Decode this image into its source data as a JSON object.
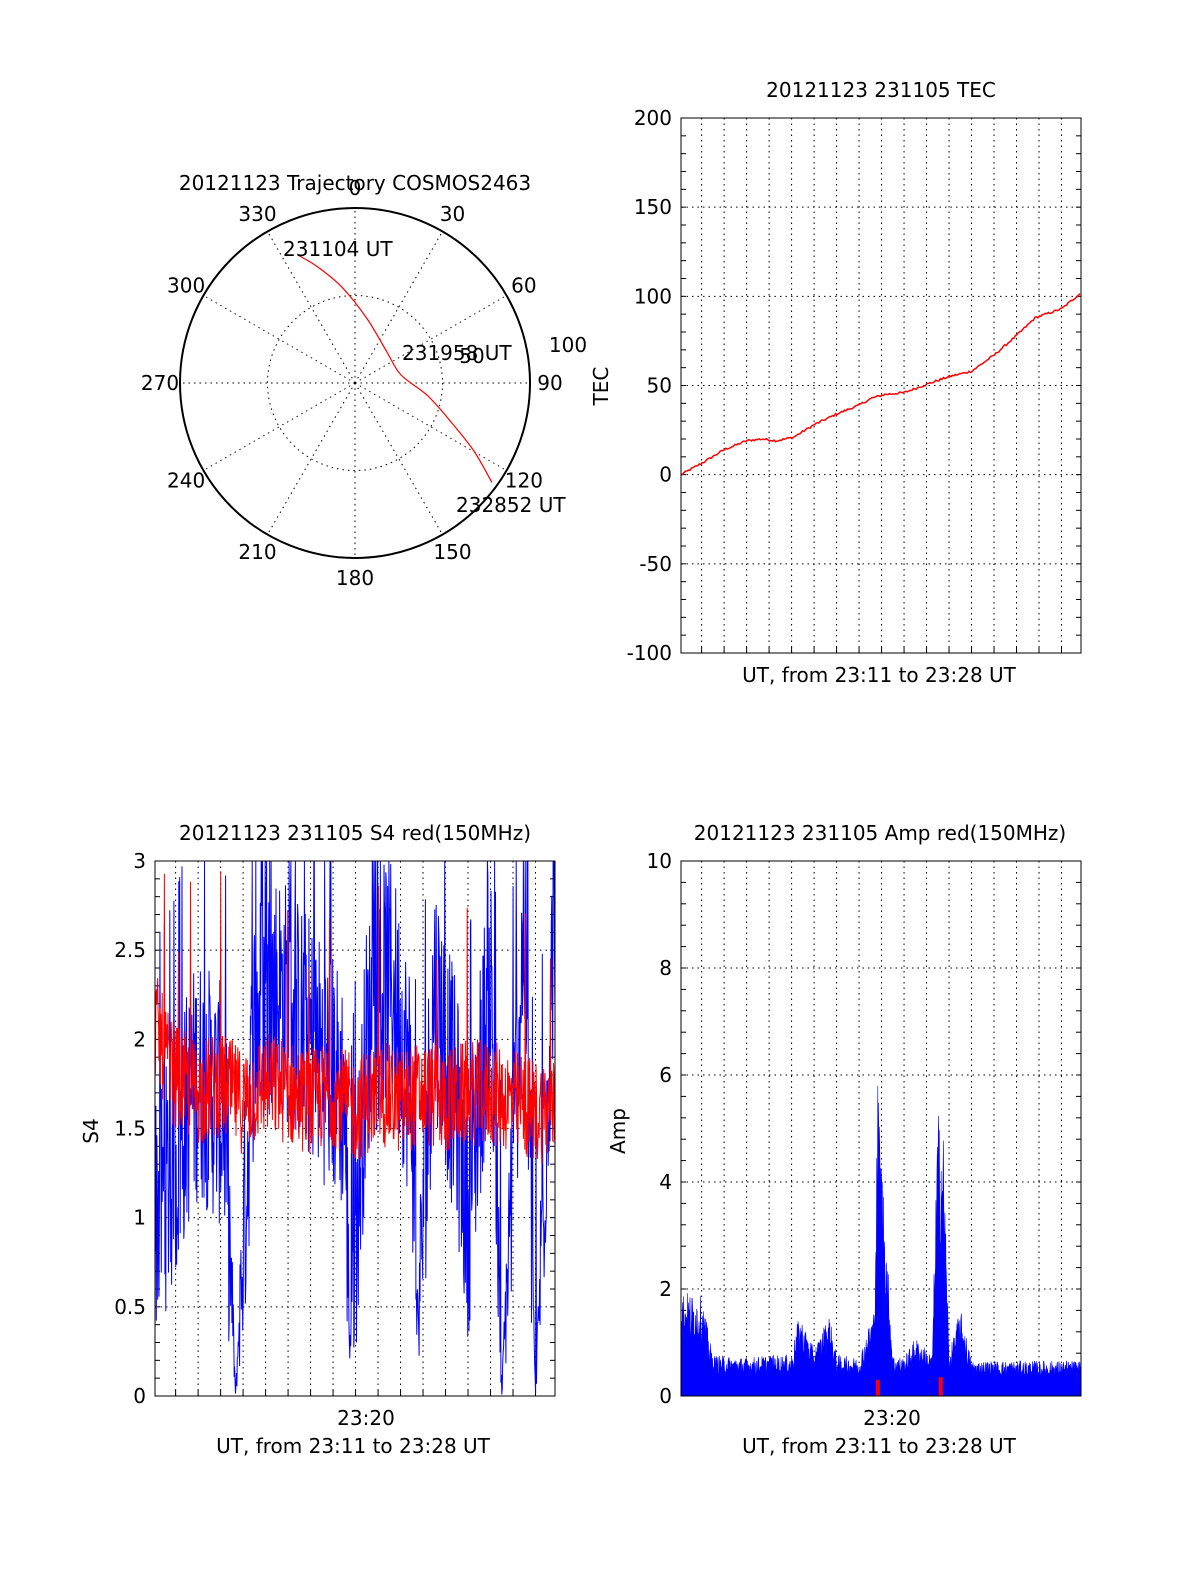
{
  "chart_data": [
    {
      "type": "polar",
      "title": "20121123 Trajectory COSMOS2463",
      "angle_labels": [
        "0",
        "30",
        "60",
        "90",
        "120",
        "150",
        "180",
        "210",
        "240",
        "270",
        "300",
        "330"
      ],
      "radial_labels": [
        "50",
        "100"
      ],
      "rlim": [
        0,
        100
      ],
      "grid": true,
      "series": [
        {
          "color": "#ff0000",
          "points": [
            {
              "az": 336,
              "el": 18
            },
            {
              "az": 342,
              "el": 27
            },
            {
              "az": 352,
              "el": 40
            },
            {
              "az": 10,
              "el": 56
            },
            {
              "az": 45,
              "el": 67
            },
            {
              "az": 80,
              "el": 66
            },
            {
              "az": 100,
              "el": 52
            },
            {
              "az": 113,
              "el": 35
            },
            {
              "az": 120,
              "el": 19
            },
            {
              "az": 126,
              "el": 3
            }
          ]
        }
      ],
      "annotations": [
        "231104 UT",
        "231958 UT",
        "232852 UT"
      ]
    },
    {
      "type": "line",
      "title": "20121123 231105 TEC",
      "xlabel": "UT, from 23:11 to 23:28 UT",
      "ylabel": "TEC",
      "xlim": [
        "23:11:05",
        "23:28:52"
      ],
      "ylim": [
        -100,
        200
      ],
      "yticks": [
        "-100",
        "-50",
        "0",
        "50",
        "100",
        "150",
        "200"
      ],
      "grid": true,
      "series": [
        {
          "color": "#ff0000",
          "x": [
            "23:11:05",
            "23:12:05",
            "23:13:00",
            "23:14:00",
            "23:14:40",
            "23:15:20",
            "23:16:05",
            "23:17:00",
            "23:18:00",
            "23:19:00",
            "23:19:35",
            "23:20:10",
            "23:21:00",
            "23:22:05",
            "23:23:00",
            "23:24:00",
            "23:25:00",
            "23:26:00",
            "23:26:50",
            "23:28:00",
            "23:28:52"
          ],
          "values": [
            0,
            7,
            14,
            19,
            20,
            19,
            21,
            28,
            34,
            39,
            43,
            45,
            46,
            51,
            55,
            58,
            67,
            78,
            88,
            93,
            102
          ]
        }
      ]
    },
    {
      "type": "line",
      "title": "20121123 231105 S4 red(150MHz)",
      "xlabel": "UT, from 23:11 to 23:28 UT",
      "ylabel": "S4",
      "xlim": [
        "23:11:05",
        "23:28:52"
      ],
      "ylim": [
        0,
        3
      ],
      "yticks": [
        "0",
        "0.5",
        "1",
        "1.5",
        "2",
        "2.5",
        "3"
      ],
      "xticks": [
        "23:20"
      ],
      "grid": true,
      "series": [
        {
          "color": "#0000ff",
          "x": [
            "23:11:05",
            "23:11:30",
            "23:12:00",
            "23:12:30",
            "23:13:00",
            "23:14:10",
            "23:14:40",
            "23:15:30",
            "23:16:30",
            "23:17:30",
            "23:18:30",
            "23:19:30",
            "23:19:45",
            "23:20:30",
            "23:21:30",
            "23:22:30",
            "23:22:45",
            "23:23:30",
            "23:24:30",
            "23:25:00",
            "23:26:00",
            "23:26:30",
            "23:27:30",
            "23:28:00",
            "23:28:52"
          ],
          "values": [
            1.05,
            1.15,
            1.3,
            1.6,
            1.8,
            1.6,
            0.0,
            2.1,
            2.3,
            2.1,
            1.9,
            1.7,
            0.3,
            2.0,
            2.4,
            1.7,
            0.38,
            2.3,
            1.6,
            1.0,
            2.4,
            0.0,
            2.7,
            0.0,
            2.8
          ]
        },
        {
          "color": "#ff0000",
          "x": [
            "23:11:05",
            "23:11:40",
            "23:12:20",
            "23:13:00",
            "23:14:00",
            "23:15:00",
            "23:16:00",
            "23:17:00",
            "23:18:00",
            "23:19:00",
            "23:20:00",
            "23:21:00",
            "23:22:00",
            "23:23:00",
            "23:24:00",
            "23:25:00",
            "23:26:00",
            "23:27:00",
            "23:28:00",
            "23:28:52"
          ],
          "values": [
            2.1,
            1.85,
            1.75,
            1.7,
            1.75,
            1.65,
            1.75,
            1.7,
            1.65,
            1.7,
            1.6,
            1.7,
            1.65,
            1.7,
            1.65,
            1.7,
            1.7,
            1.65,
            1.6,
            1.6
          ]
        }
      ]
    },
    {
      "type": "line",
      "title": "20121123 231105 Amp red(150MHz)",
      "xlabel": "UT, from 23:11 to 23:28 UT",
      "ylabel": "Amp",
      "xlim": [
        "23:11:05",
        "23:28:52"
      ],
      "ylim": [
        0,
        10
      ],
      "yticks": [
        "0",
        "2",
        "4",
        "6",
        "8",
        "10"
      ],
      "xticks": [
        "23:20"
      ],
      "grid": true,
      "series": [
        {
          "color": "#0000ff",
          "x": [
            "23:11:05",
            "23:12:00",
            "23:12:30",
            "23:14:00",
            "23:15:00",
            "23:16:00",
            "23:16:20",
            "23:17:00",
            "23:17:40",
            "23:18:00",
            "23:19:00",
            "23:19:40",
            "23:19:50",
            "23:20:00",
            "23:20:30",
            "23:21:00",
            "23:21:30",
            "23:22:15",
            "23:22:30",
            "23:22:45",
            "23:23:00",
            "23:23:30",
            "23:24:00",
            "23:25:00",
            "23:26:00",
            "23:27:00",
            "23:28:52"
          ],
          "values": [
            1.8,
            1.7,
            0.7,
            0.65,
            0.7,
            0.7,
            1.4,
            0.8,
            1.4,
            0.7,
            0.65,
            1.5,
            5.4,
            4.2,
            0.7,
            0.65,
            1.0,
            0.7,
            4.9,
            4.5,
            0.7,
            1.5,
            0.6,
            0.6,
            0.6,
            0.6,
            0.6
          ]
        },
        {
          "color": "#ff0000",
          "x": [
            "23:19:50",
            "23:22:38"
          ],
          "values": [
            0.3,
            0.35
          ]
        }
      ]
    }
  ]
}
